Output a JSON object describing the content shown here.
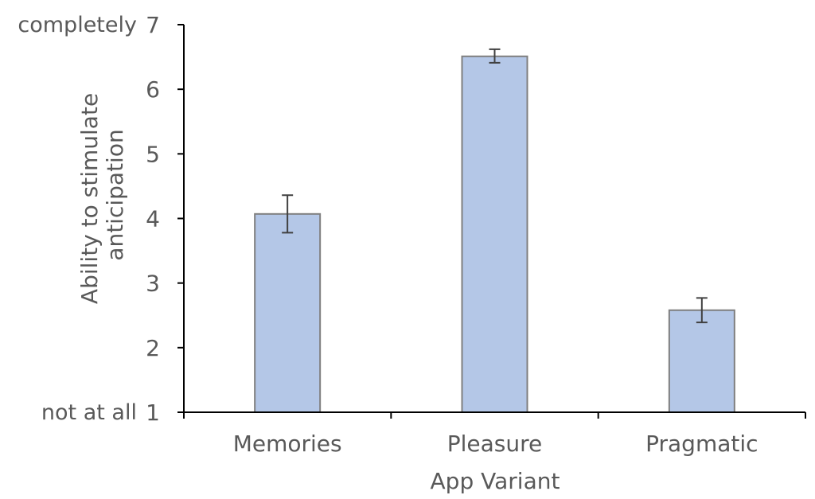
{
  "chart_data": {
    "type": "bar",
    "categories": [
      "Memories",
      "Pleasure",
      "Pragmatic"
    ],
    "values": [
      4.07,
      6.51,
      2.58
    ],
    "error_bars": [
      {
        "low": 3.78,
        "high": 4.36
      },
      {
        "low": 6.41,
        "high": 6.62
      },
      {
        "low": 2.39,
        "high": 2.77
      }
    ],
    "xlabel": "App Variant",
    "ylabel_lines": [
      "Ability to stimulate",
      "anticipation"
    ],
    "ylim": [
      1,
      7
    ],
    "yticks": [
      1,
      2,
      3,
      4,
      5,
      6,
      7
    ],
    "ytick_labels": [
      "1",
      "2",
      "3",
      "4",
      "5",
      "6",
      "7"
    ],
    "y_anchor_labels": {
      "top": "completely",
      "bottom": "not at all"
    },
    "bar_color": "#b4c7e7",
    "bar_edge_color": "#7f7f7f",
    "grid": false,
    "legend": false
  }
}
